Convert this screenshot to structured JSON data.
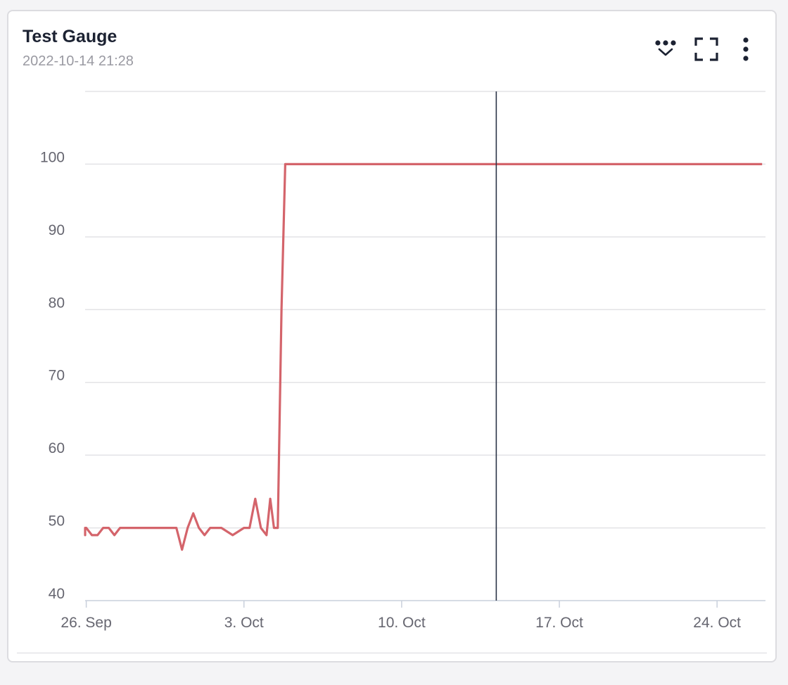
{
  "card": {
    "title": "Test Gauge",
    "subtitle": "2022-10-14 21:28"
  },
  "toolbar": {
    "icons": [
      "dots-chevron-icon",
      "fullscreen-icon",
      "more-vertical-icon"
    ]
  },
  "colors": {
    "series": "#d4646b",
    "crosshair": "#2b3447",
    "grid": "#e3e3e6"
  },
  "chart_data": {
    "type": "line",
    "title": "",
    "xlabel": "",
    "ylabel": "",
    "ylim": [
      40,
      110
    ],
    "xlim": [
      "2022-09-25",
      "2022-10-26"
    ],
    "grid": true,
    "legend": "none",
    "y_ticks": [
      40,
      50,
      60,
      70,
      80,
      90,
      100
    ],
    "x_ticks": [
      {
        "label": "26. Sep",
        "date": "2022-09-26"
      },
      {
        "label": "3. Oct",
        "date": "2022-10-03"
      },
      {
        "label": "10. Oct",
        "date": "2022-10-10"
      },
      {
        "label": "17. Oct",
        "date": "2022-10-17"
      },
      {
        "label": "24. Oct",
        "date": "2022-10-24"
      }
    ],
    "crosshair_x": "2022-10-14",
    "series": [
      {
        "values": [
          [
            "2022-09-25",
            50
          ],
          [
            "2022-09-25",
            50
          ],
          [
            "2022-09-25",
            49
          ],
          [
            "2022-09-25",
            50
          ],
          [
            "2022-09-26",
            50
          ],
          [
            "2022-09-26",
            49
          ],
          [
            "2022-09-26",
            49
          ],
          [
            "2022-09-26",
            50
          ],
          [
            "2022-09-27",
            50
          ],
          [
            "2022-09-27",
            49
          ],
          [
            "2022-09-27",
            50
          ],
          [
            "2022-09-27",
            50
          ],
          [
            "2022-09-30",
            50
          ],
          [
            "2022-09-30",
            47
          ],
          [
            "2022-09-30",
            50
          ],
          [
            "2022-09-30",
            52
          ],
          [
            "2022-10-01",
            50
          ],
          [
            "2022-10-01",
            49
          ],
          [
            "2022-10-01",
            50
          ],
          [
            "2022-10-01",
            50
          ],
          [
            "2022-10-02",
            50
          ],
          [
            "2022-10-02",
            49
          ],
          [
            "2022-10-03",
            50
          ],
          [
            "2022-10-03",
            50
          ],
          [
            "2022-10-03",
            54
          ],
          [
            "2022-10-03",
            50
          ],
          [
            "2022-10-04",
            49
          ],
          [
            "2022-10-04",
            54
          ],
          [
            "2022-10-04",
            50
          ],
          [
            "2022-10-04",
            50
          ],
          [
            "2022-10-04",
            80
          ],
          [
            "2022-10-04",
            100
          ],
          [
            "2022-10-26",
            100
          ]
        ]
      }
    ]
  }
}
